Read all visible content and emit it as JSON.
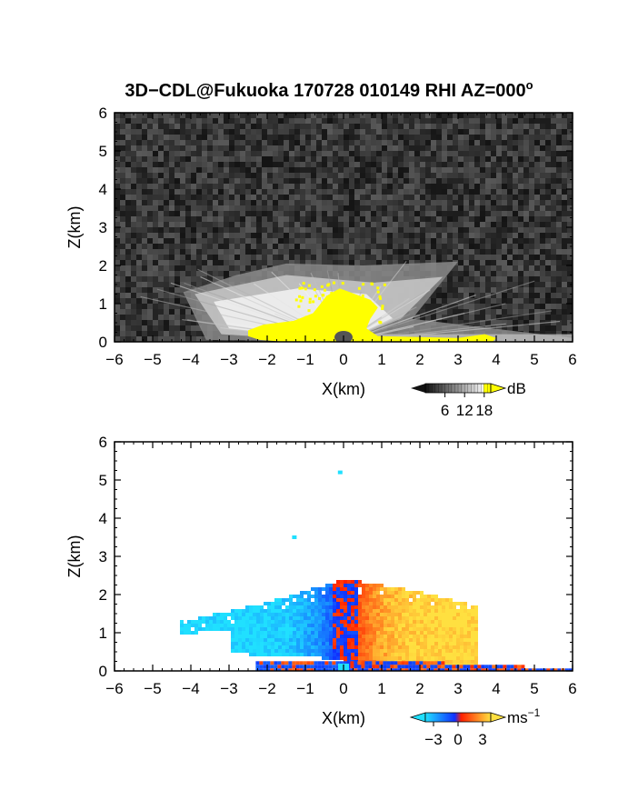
{
  "chart_data": [
    {
      "type": "heatmap",
      "title": "3D−CDL@Fukuoka 170728 010149 RHI AZ=000",
      "title_degree_mark": "o",
      "xlabel": "X(km)",
      "ylabel": "Z(km)",
      "xlim": [
        -6,
        6
      ],
      "ylim": [
        0,
        6
      ],
      "xticks": [
        "−6",
        "−5",
        "−4",
        "−3",
        "−2",
        "−1",
        "0",
        "1",
        "2",
        "3",
        "4",
        "5",
        "6"
      ],
      "yticks": [
        "0",
        "1",
        "2",
        "3",
        "4",
        "5",
        "6"
      ],
      "colormap": "grayscale with yellow for values above 18 dB",
      "background": "noise",
      "fan_top_left": [
        -4.2,
        1.3
      ],
      "fan_top_right": [
        3.0,
        2.1
      ],
      "colorbar": {
        "unit": "dB",
        "tick_labels": [
          "6",
          "12",
          "18"
        ],
        "ticks": [
          6,
          12,
          18
        ],
        "range": [
          0,
          20
        ],
        "colors": [
          "#111111",
          "#ffffff",
          "#ffff00"
        ]
      }
    },
    {
      "type": "heatmap",
      "xlabel": "X(km)",
      "ylabel": "Z(km)",
      "xlim": [
        -6,
        6
      ],
      "ylim": [
        0,
        6
      ],
      "xticks": [
        "−6",
        "−5",
        "−4",
        "−3",
        "−2",
        "−1",
        "0",
        "1",
        "2",
        "3",
        "4",
        "5",
        "6"
      ],
      "yticks": [
        "0",
        "1",
        "2",
        "3",
        "4",
        "5",
        "6"
      ],
      "colormap": "cyan-blue for negative velocity, red-yellow for positive velocity",
      "background": "white",
      "isolated_points": [
        [
          -0.1,
          5.2
        ],
        [
          -1.3,
          3.5
        ]
      ],
      "colorbar": {
        "unit": "ms",
        "unit_exponent": "−1",
        "tick_labels": [
          "−3",
          "0",
          "3"
        ],
        "ticks": [
          -3,
          0,
          3
        ],
        "range": [
          -4,
          4
        ],
        "colors": [
          "#20e0ff",
          "#1030ff",
          "#ff2000",
          "#ffe040"
        ]
      }
    }
  ]
}
